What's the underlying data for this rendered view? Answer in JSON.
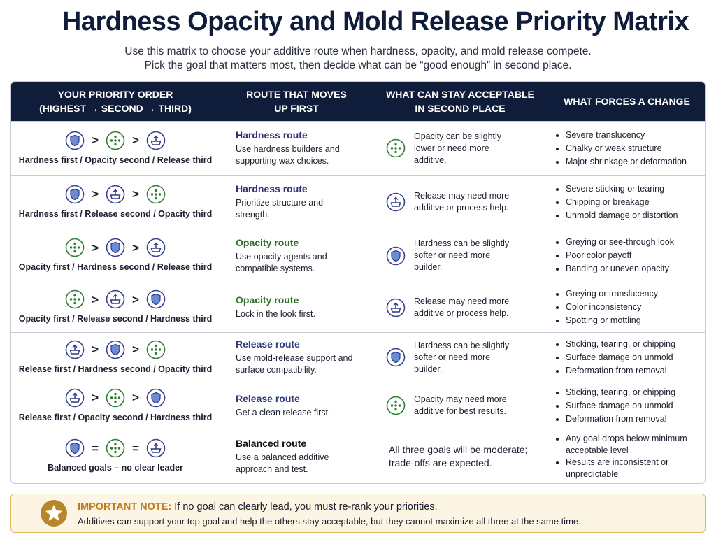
{
  "header": {
    "title": "Hardness Opacity and Mold Release Priority Matrix",
    "subtitle": [
      "Use this matrix to choose your additive route when hardness, opacity, and mold release compete.",
      "Pick the goal that matters most, then decide what can be “good enough” in second place."
    ]
  },
  "table": {
    "columns": [
      "YOUR PRIORITY ORDER\n(HIGHEST → SECOND → THIRD)",
      "ROUTE THAT MOVES\nUP FIRST",
      "WHAT CAN STAY ACCEPTABLE\nIN SECOND PLACE",
      "WHAT FORCES A CHANGE"
    ],
    "rows": [
      {
        "priority": "Hardness first / Opacity second / Release third",
        "sep": ">",
        "route": "Hardness route",
        "route_desc": "Use hardness builders and supporting wax choices.",
        "acceptable": "Opacity can be slightly lower or need more additive.",
        "forces": [
          "Severe translucency",
          "Chalky or weak structure",
          "Major shrinkage or deformation"
        ]
      },
      {
        "priority": "Hardness first / Release second / Opacity third",
        "sep": ">",
        "route": "Hardness route",
        "route_desc": "Prioritize structure and strength.",
        "acceptable": "Release may need more additive or process help.",
        "forces": [
          "Severe sticking or tearing",
          "Chipping or breakage",
          "Unmold damage or distortion"
        ]
      },
      {
        "priority": "Opacity first / Hardness second / Release third",
        "sep": ">",
        "route": "Opacity route",
        "route_desc": "Use opacity agents and compatible systems.",
        "acceptable": "Hardness can be slightly softer or need more builder.",
        "forces": [
          "Greying or see-through look",
          "Poor color payoff",
          "Banding or uneven opacity"
        ]
      },
      {
        "priority": "Opacity first / Release second / Hardness third",
        "sep": ">",
        "route": "Opacity route",
        "route_desc": "Lock in the look first.",
        "acceptable": "Release may need more additive or process help.",
        "forces": [
          "Greying or translucency",
          "Color inconsistency",
          "Spotting or mottling"
        ]
      },
      {
        "priority": "Release first / Hardness second / Opacity third",
        "sep": ">",
        "route": "Release route",
        "route_desc": "Use mold-release support and surface compatibility.",
        "acceptable": "Hardness can be slightly softer or need more builder.",
        "forces": [
          "Sticking, tearing, or chipping",
          "Surface damage on unmold",
          "Deformation from removal"
        ]
      },
      {
        "priority": "Release first / Opacity second / Hardness third",
        "sep": ">",
        "route": "Release route",
        "route_desc": "Get a clean release first.",
        "acceptable": "Opacity may need more additive for best results.",
        "forces": [
          "Sticking, tearing, or chipping",
          "Surface damage on unmold",
          "Deformation from removal"
        ]
      },
      {
        "priority": "Balanced goals – no clear leader",
        "sep": "=",
        "route": "Balanced route",
        "route_desc": "Use a balanced additive approach and test.",
        "acceptable": "All three goals will be moderate; trade-offs are expected.",
        "forces": [
          "Any goal drops below minimum acceptable level",
          "Results are inconsistent or unpredictable"
        ]
      }
    ]
  },
  "note": {
    "label": "IMPORTANT NOTE:",
    "text": "If no goal can clearly lead, you must re-rank your priorities.",
    "detail": "Additives can support your top goal and help the others stay acceptable, but they cannot maximize all three at the same time."
  }
}
